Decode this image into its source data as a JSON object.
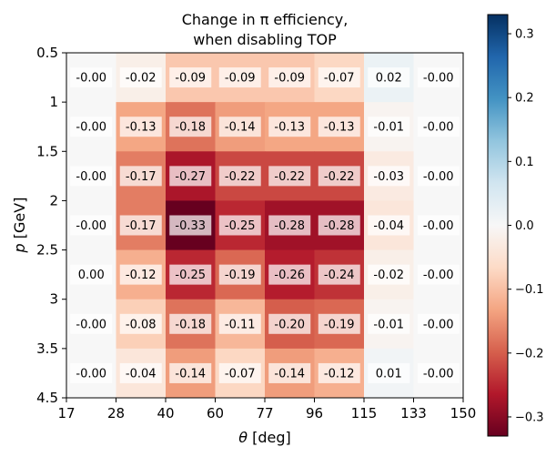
{
  "chart_data": {
    "type": "heatmap",
    "title_line1": "Change in π efficiency,",
    "title_line2": "when disabling TOP",
    "xlabel_symbol": "θ",
    "xlabel_unit": " [deg]",
    "ylabel_symbol": "p",
    "ylabel_unit": " [GeV]",
    "x_edges": [
      17,
      28,
      40,
      60,
      77,
      96,
      115,
      133,
      150
    ],
    "x_tick_labels": [
      "17",
      "28",
      "40",
      "60",
      "77",
      "96",
      "115",
      "133",
      "150"
    ],
    "y_edges": [
      0.5,
      1,
      1.5,
      2,
      2.5,
      3,
      3.5,
      4.5
    ],
    "y_tick_labels": [
      "0.5",
      "1",
      "1.5",
      "2",
      "2.5",
      "3",
      "3.5",
      "4.5"
    ],
    "values": [
      [
        -0.0,
        -0.02,
        -0.09,
        -0.09,
        -0.09,
        -0.07,
        0.02,
        -0.0
      ],
      [
        -0.0,
        -0.13,
        -0.18,
        -0.14,
        -0.13,
        -0.13,
        -0.01,
        -0.0
      ],
      [
        -0.0,
        -0.17,
        -0.27,
        -0.22,
        -0.22,
        -0.22,
        -0.03,
        -0.0
      ],
      [
        -0.0,
        -0.17,
        -0.33,
        -0.25,
        -0.28,
        -0.28,
        -0.04,
        -0.0
      ],
      [
        0.0,
        -0.12,
        -0.25,
        -0.19,
        -0.26,
        -0.24,
        -0.02,
        -0.0
      ],
      [
        -0.0,
        -0.08,
        -0.18,
        -0.11,
        -0.2,
        -0.19,
        -0.01,
        -0.0
      ],
      [
        -0.0,
        -0.04,
        -0.14,
        -0.07,
        -0.14,
        -0.12,
        0.01,
        -0.0
      ]
    ],
    "cell_labels": [
      [
        "-0.00",
        "-0.02",
        "-0.09",
        "-0.09",
        "-0.09",
        "-0.07",
        "0.02",
        "-0.00"
      ],
      [
        "-0.00",
        "-0.13",
        "-0.18",
        "-0.14",
        "-0.13",
        "-0.13",
        "-0.01",
        "-0.00"
      ],
      [
        "-0.00",
        "-0.17",
        "-0.27",
        "-0.22",
        "-0.22",
        "-0.22",
        "-0.03",
        "-0.00"
      ],
      [
        "-0.00",
        "-0.17",
        "-0.33",
        "-0.25",
        "-0.28",
        "-0.28",
        "-0.04",
        "-0.00"
      ],
      [
        "0.00",
        "-0.12",
        "-0.25",
        "-0.19",
        "-0.26",
        "-0.24",
        "-0.02",
        "-0.00"
      ],
      [
        "-0.00",
        "-0.08",
        "-0.18",
        "-0.11",
        "-0.20",
        "-0.19",
        "-0.01",
        "-0.00"
      ],
      [
        "-0.00",
        "-0.04",
        "-0.14",
        "-0.07",
        "-0.14",
        "-0.12",
        "0.01",
        "-0.00"
      ]
    ],
    "colormap": "RdBu",
    "color_limits": [
      -0.33,
      0.33
    ],
    "colorbar_ticks": [
      0.3,
      0.2,
      0.1,
      0.0,
      -0.1,
      -0.2,
      -0.3
    ],
    "colorbar_tick_labels": [
      "0.3",
      "0.2",
      "0.1",
      "0.0",
      "−0.1",
      "−0.2",
      "−0.3"
    ],
    "grid": false,
    "colorbar_position": "right"
  }
}
